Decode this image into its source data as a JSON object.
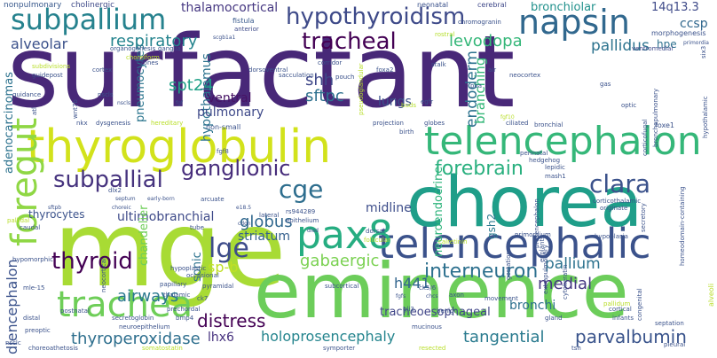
{
  "words": [
    {
      "text": "surfactant",
      "color": "#482878"
    },
    {
      "text": "mge",
      "color": "#a8db34"
    },
    {
      "text": "chorea",
      "color": "#1f9e89"
    },
    {
      "text": "eminence",
      "color": "#6ccd5a"
    },
    {
      "text": "thyroglobulin",
      "color": "#d2e21b"
    },
    {
      "text": "telencephalon",
      "color": "#35b779"
    },
    {
      "text": "telencephalic",
      "color": "#3b528b"
    },
    {
      "text": "napsin",
      "color": "#31688e"
    },
    {
      "text": "subpallium",
      "color": "#26828e"
    },
    {
      "text": "hypothyroidism",
      "color": "#3e4a89"
    },
    {
      "text": "trachea",
      "color": "#6ece58"
    },
    {
      "text": "foregut",
      "color": "#8fd744"
    },
    {
      "text": "pax8",
      "color": "#26ad81"
    },
    {
      "text": "tracheal",
      "color": "#440154"
    },
    {
      "text": "ganglionic",
      "color": "#472d7b"
    },
    {
      "text": "forebrain",
      "color": "#2ab07f"
    },
    {
      "text": "clara",
      "color": "#3b528b"
    },
    {
      "text": "subpallial",
      "color": "#46337e"
    },
    {
      "text": "thyroid",
      "color": "#440154"
    },
    {
      "text": "lge",
      "color": "#3e4c8a"
    },
    {
      "text": "interneuron",
      "color": "#2d708e"
    },
    {
      "text": "cge",
      "color": "#2e6e8e"
    },
    {
      "text": "respiratory",
      "color": "#25848e"
    },
    {
      "text": "levodopa",
      "color": "#35b779"
    },
    {
      "text": "pallidus",
      "color": "#2c738e"
    },
    {
      "text": "spt24",
      "color": "#1fa187"
    },
    {
      "text": "shh",
      "color": "#3f4889"
    },
    {
      "text": "sftpc",
      "color": "#2d708e"
    },
    {
      "text": "endoderm",
      "color": "#2c728e"
    },
    {
      "text": "alveolar",
      "color": "#3b518b"
    },
    {
      "text": "ccsp",
      "color": "#30678d"
    },
    {
      "text": "14q13.3",
      "color": "#3e4a89"
    },
    {
      "text": "bronchiolar",
      "color": "#21918c"
    },
    {
      "text": "thalamocortical",
      "color": "#453781"
    },
    {
      "text": "thyroperoxidase",
      "color": "#2e6f8e"
    },
    {
      "text": "holoprosencephaly",
      "color": "#25858e"
    },
    {
      "text": "tangential",
      "color": "#297a8e"
    },
    {
      "text": "parvalbumin",
      "color": "#3a548c"
    },
    {
      "text": "distress",
      "color": "#440154"
    },
    {
      "text": "lhx6",
      "color": "#46317e"
    },
    {
      "text": "airways",
      "color": "#2a788e"
    },
    {
      "text": "gabaergic",
      "color": "#7ad151"
    },
    {
      "text": "h441",
      "color": "#32658e"
    },
    {
      "text": "medial",
      "color": "#453781"
    },
    {
      "text": "bronchi",
      "color": "#2d708e"
    },
    {
      "text": "sp-b",
      "color": "#c0df25"
    },
    {
      "text": "globus",
      "color": "#31688e"
    },
    {
      "text": "striatum",
      "color": "#35608d"
    },
    {
      "text": "midline",
      "color": "#3d4d8a"
    },
    {
      "text": "ultimobranchial",
      "color": "#3e4a89"
    },
    {
      "text": "thyrocytes",
      "color": "#3b528b"
    },
    {
      "text": "diencephalon",
      "color": "#3b528b"
    },
    {
      "text": "adenocarcinomas",
      "color": "#2c728e"
    },
    {
      "text": "pneumocytes",
      "color": "#2b758e"
    },
    {
      "text": "hypothalamus",
      "color": "#2c738e"
    },
    {
      "text": "ventral",
      "color": "#471365"
    },
    {
      "text": "pulmonary",
      "color": "#3e4989"
    },
    {
      "text": "lungs",
      "color": "#3b528b"
    },
    {
      "text": "branching",
      "color": "#35b779"
    },
    {
      "text": "neuroendocrine",
      "color": "#2fb47c"
    },
    {
      "text": "tracheoesophageal",
      "color": "#404588"
    },
    {
      "text": "pallium",
      "color": "#2c728e"
    },
    {
      "text": "hpe",
      "color": "#2d708e"
    },
    {
      "text": "chandelier",
      "color": "#6ece58"
    },
    {
      "text": "sonic",
      "color": "#2c728e"
    },
    {
      "text": "gsh2",
      "color": "#2a788e"
    },
    {
      "text": "nonpulmonary",
      "color": "#38588c"
    },
    {
      "text": "cholinergic",
      "color": "#3e4a89"
    },
    {
      "text": "neonatal",
      "color": "#3b528b"
    },
    {
      "text": "cerebral",
      "color": "#3f4889"
    },
    {
      "text": "fistula",
      "color": "#38598c"
    },
    {
      "text": "anterior",
      "color": "#3e4a89"
    },
    {
      "text": "chromogranin",
      "color": "#3b528b"
    },
    {
      "text": "morphogenesis",
      "color": "#3b528b"
    },
    {
      "text": "ventromedial",
      "color": "#3f4889"
    },
    {
      "text": "organogenesis",
      "color": "#3a548c"
    },
    {
      "text": "ganglia",
      "color": "#3b528b"
    },
    {
      "text": "scgb1a1",
      "color": "#3b528b"
    },
    {
      "text": "rostral",
      "color": "#b5de2b"
    },
    {
      "text": "primordia",
      "color": "#3b528b"
    },
    {
      "text": "choreiform",
      "color": "#b8de29"
    },
    {
      "text": "subdivisions",
      "color": "#b8de29"
    },
    {
      "text": "guidepost",
      "color": "#3b528b"
    },
    {
      "text": "zones",
      "color": "#3b528b"
    },
    {
      "text": "cortex",
      "color": "#3b528b"
    },
    {
      "text": "nscls",
      "color": "#3b528b"
    },
    {
      "text": "guidance",
      "color": "#3b528b"
    },
    {
      "text": "nscls",
      "color": "#3b528b"
    },
    {
      "text": "dorsoventral",
      "color": "#3b528b"
    },
    {
      "text": "sacculation",
      "color": "#3b528b"
    },
    {
      "text": "corridor",
      "color": "#3b528b"
    },
    {
      "text": "pouch",
      "color": "#3b528b"
    },
    {
      "text": "foxa2",
      "color": "#3b528b"
    },
    {
      "text": "stalk",
      "color": "#3b528b"
    },
    {
      "text": "air",
      "color": "#3b528b"
    },
    {
      "text": "neocortex",
      "color": "#3b528b"
    },
    {
      "text": "poa",
      "color": "#3b528b"
    },
    {
      "text": "gas",
      "color": "#3b528b"
    },
    {
      "text": "egfr",
      "color": "#3b528b"
    },
    {
      "text": "buds",
      "color": "#b5de2b"
    },
    {
      "text": "pseudoglandular",
      "color": "#b8de29"
    },
    {
      "text": "fgf",
      "color": "#3b528b"
    },
    {
      "text": "dysgenesis",
      "color": "#3b528b"
    },
    {
      "text": "hereditary",
      "color": "#b8de29"
    },
    {
      "text": "nkx",
      "color": "#3b528b"
    },
    {
      "text": "non-small",
      "color": "#3b528b"
    },
    {
      "text": "projection",
      "color": "#3b528b"
    },
    {
      "text": "birth",
      "color": "#3b528b"
    },
    {
      "text": "globes",
      "color": "#3b528b"
    },
    {
      "text": "ciliated",
      "color": "#3b528b"
    },
    {
      "text": "bronchial",
      "color": "#3b528b"
    },
    {
      "text": "fgf10",
      "color": "#b8de29"
    },
    {
      "text": "optic",
      "color": "#3b528b"
    },
    {
      "text": "foxe1",
      "color": "#3b528b"
    },
    {
      "text": "hedgehog",
      "color": "#3b528b"
    },
    {
      "text": "perinatal",
      "color": "#3b528b"
    },
    {
      "text": "lepidic",
      "color": "#3b528b"
    },
    {
      "text": "corticothalamic",
      "color": "#3b528b"
    },
    {
      "text": "mash1",
      "color": "#3b528b"
    },
    {
      "text": "rs944289",
      "color": "#3b528b"
    },
    {
      "text": "epithelium",
      "color": "#3b528b"
    },
    {
      "text": "arcuate",
      "color": "#3b528b"
    },
    {
      "text": "septum",
      "color": "#3b528b"
    },
    {
      "text": "early-born",
      "color": "#3b528b"
    },
    {
      "text": "dlx2",
      "color": "#3b528b"
    },
    {
      "text": "choreic",
      "color": "#3b528b"
    },
    {
      "text": "sftpb",
      "color": "#3b528b"
    },
    {
      "text": "caudal",
      "color": "#3b528b"
    },
    {
      "text": "pallidal",
      "color": "#b8de29"
    },
    {
      "text": "lateral",
      "color": "#3b528b"
    },
    {
      "text": "cdon",
      "color": "#3b528b"
    },
    {
      "text": "e18.5",
      "color": "#3b528b"
    },
    {
      "text": "died",
      "color": "#3b528b"
    },
    {
      "text": "dorsal",
      "color": "#3b528b"
    },
    {
      "text": "gestation",
      "color": "#3b528b"
    },
    {
      "text": "explants",
      "color": "#3b528b"
    },
    {
      "text": "prosencephalon",
      "color": "#3b528b"
    },
    {
      "text": "hypoplasia",
      "color": "#3b528b"
    },
    {
      "text": "originate",
      "color": "#3b528b"
    },
    {
      "text": "secretory",
      "color": "#3b528b"
    },
    {
      "text": "tube",
      "color": "#3b528b"
    },
    {
      "text": "hypoplastic",
      "color": "#3b528b"
    },
    {
      "text": "occasional",
      "color": "#3b528b"
    },
    {
      "text": "primordium",
      "color": "#3b528b"
    },
    {
      "text": "calretinin",
      "color": "#b8de29"
    },
    {
      "text": "pyramidal",
      "color": "#3b528b"
    },
    {
      "text": "papillary",
      "color": "#3b528b"
    },
    {
      "text": "thalamic",
      "color": "#3b528b"
    },
    {
      "text": "subcortical",
      "color": "#3b528b"
    },
    {
      "text": "fgfs",
      "color": "#3b528b"
    },
    {
      "text": "chcs",
      "color": "#3b528b"
    },
    {
      "text": "movement",
      "color": "#3b528b"
    },
    {
      "text": "axon",
      "color": "#3b528b"
    },
    {
      "text": "pallidum",
      "color": "#b8de29"
    },
    {
      "text": "secretoglobin",
      "color": "#3b528b"
    },
    {
      "text": "neuroepithelium",
      "color": "#3b528b"
    },
    {
      "text": "bmp4",
      "color": "#3b528b"
    },
    {
      "text": "prechordal",
      "color": "#3b528b"
    },
    {
      "text": "gli3",
      "color": "#3b528b"
    },
    {
      "text": "benign",
      "color": "#3b528b"
    },
    {
      "text": "mucinous",
      "color": "#3b528b"
    },
    {
      "text": "gland",
      "color": "#3b528b"
    },
    {
      "text": "cortical",
      "color": "#3b528b"
    },
    {
      "text": "infants",
      "color": "#3b528b"
    },
    {
      "text": "septation",
      "color": "#3b528b"
    },
    {
      "text": "symporter",
      "color": "#3b528b"
    },
    {
      "text": "resected",
      "color": "#b8de29"
    },
    {
      "text": "tsh",
      "color": "#3b528b"
    },
    {
      "text": "pleural",
      "color": "#3b528b"
    },
    {
      "text": "choreoathetosis",
      "color": "#3b528b"
    },
    {
      "text": "somatostatin",
      "color": "#b8de29"
    },
    {
      "text": "nsclc",
      "color": "#3b528b"
    },
    {
      "text": "preoptic",
      "color": "#3b528b"
    },
    {
      "text": "distal",
      "color": "#3b528b"
    },
    {
      "text": "postnatal",
      "color": "#3b528b"
    },
    {
      "text": "neocortical",
      "color": "#3b528b"
    },
    {
      "text": "mle-15",
      "color": "#3b528b"
    },
    {
      "text": "hypomorphic",
      "color": "#3b528b"
    },
    {
      "text": "ck7",
      "color": "#3b528b"
    },
    {
      "text": "ck5/6",
      "color": "#3b528b"
    },
    {
      "text": "follicular",
      "color": "#b8de29"
    },
    {
      "text": "wnt7b",
      "color": "#3b528b"
    },
    {
      "text": "atl",
      "color": "#3b528b"
    },
    {
      "text": "fgf8",
      "color": "#3b528b"
    },
    {
      "text": "homeodomain-containing",
      "color": "#3b528b"
    },
    {
      "text": "extrapulmonary",
      "color": "#3b528b"
    },
    {
      "text": "cytokeratin",
      "color": "#3b528b"
    },
    {
      "text": "congenital",
      "color": "#3b528b"
    },
    {
      "text": "alveoli",
      "color": "#b8de29"
    },
    {
      "text": "corticofugal",
      "color": "#3b528b"
    },
    {
      "text": "bronchopulmonary",
      "color": "#3b528b"
    },
    {
      "text": "hypothalamic",
      "color": "#3b528b"
    },
    {
      "text": "six3",
      "color": "#3b528b"
    }
  ]
}
